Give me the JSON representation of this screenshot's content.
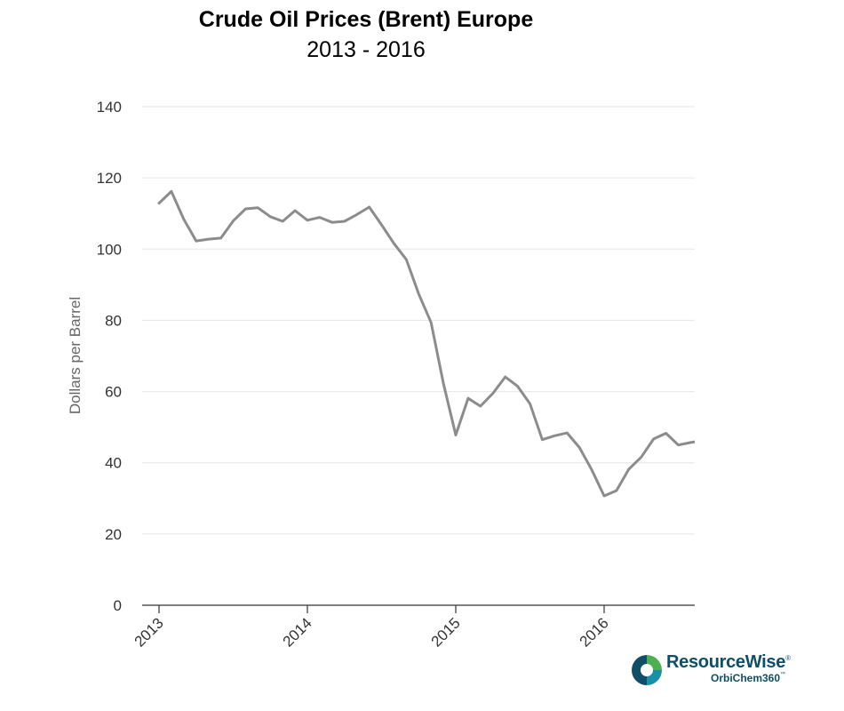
{
  "chart_data": {
    "type": "line",
    "title": "Crude Oil Prices (Brent) Europe",
    "subtitle": "2013 - 2016",
    "xlabel": "",
    "ylabel": "Dollars per Barrel",
    "ylim": [
      0,
      140
    ],
    "yticks": [
      "0",
      "20",
      "40",
      "60",
      "80",
      "100",
      "120",
      "140"
    ],
    "xticks": [
      "2013",
      "2014",
      "2015",
      "2016"
    ],
    "grid": true,
    "legend": "none",
    "line_color": "#8c8c8c",
    "series": [
      {
        "x": [
          "2013-01",
          "2013-02",
          "2013-03",
          "2013-04",
          "2013-05",
          "2013-06",
          "2013-07",
          "2013-08",
          "2013-09",
          "2013-10",
          "2013-11",
          "2013-12",
          "2014-01",
          "2014-02",
          "2014-03",
          "2014-04",
          "2014-05",
          "2014-06",
          "2014-07",
          "2014-08",
          "2014-09",
          "2014-10",
          "2014-11",
          "2014-12",
          "2015-01",
          "2015-02",
          "2015-03",
          "2015-04",
          "2015-05",
          "2015-06",
          "2015-07",
          "2015-08",
          "2015-09",
          "2015-10",
          "2015-11",
          "2015-12",
          "2016-01",
          "2016-02",
          "2016-03",
          "2016-04",
          "2016-05",
          "2016-06",
          "2016-07",
          "2016-08",
          "2016-09"
        ],
        "values": [
          112.9,
          116.2,
          108.4,
          102.3,
          102.8,
          103.1,
          107.9,
          111.3,
          111.6,
          109.1,
          107.8,
          110.8,
          108.1,
          108.9,
          107.5,
          107.8,
          109.7,
          111.8,
          106.8,
          101.6,
          97.1,
          87.4,
          79.4,
          62.3,
          47.8,
          58.1,
          55.9,
          59.5,
          64.1,
          61.5,
          56.6,
          46.5,
          47.6,
          48.4,
          44.3,
          38.0,
          30.7,
          32.2,
          38.2,
          41.6,
          46.7,
          48.3,
          45.0,
          45.7,
          46.3
        ]
      }
    ]
  },
  "brand": {
    "name": "ResourceWise",
    "name_mark": "®",
    "product": "OrbiChem360",
    "product_mark": "™",
    "colors": {
      "navy": "#0e4f67",
      "green": "#4caf50",
      "teal": "#1b8fa5"
    }
  }
}
